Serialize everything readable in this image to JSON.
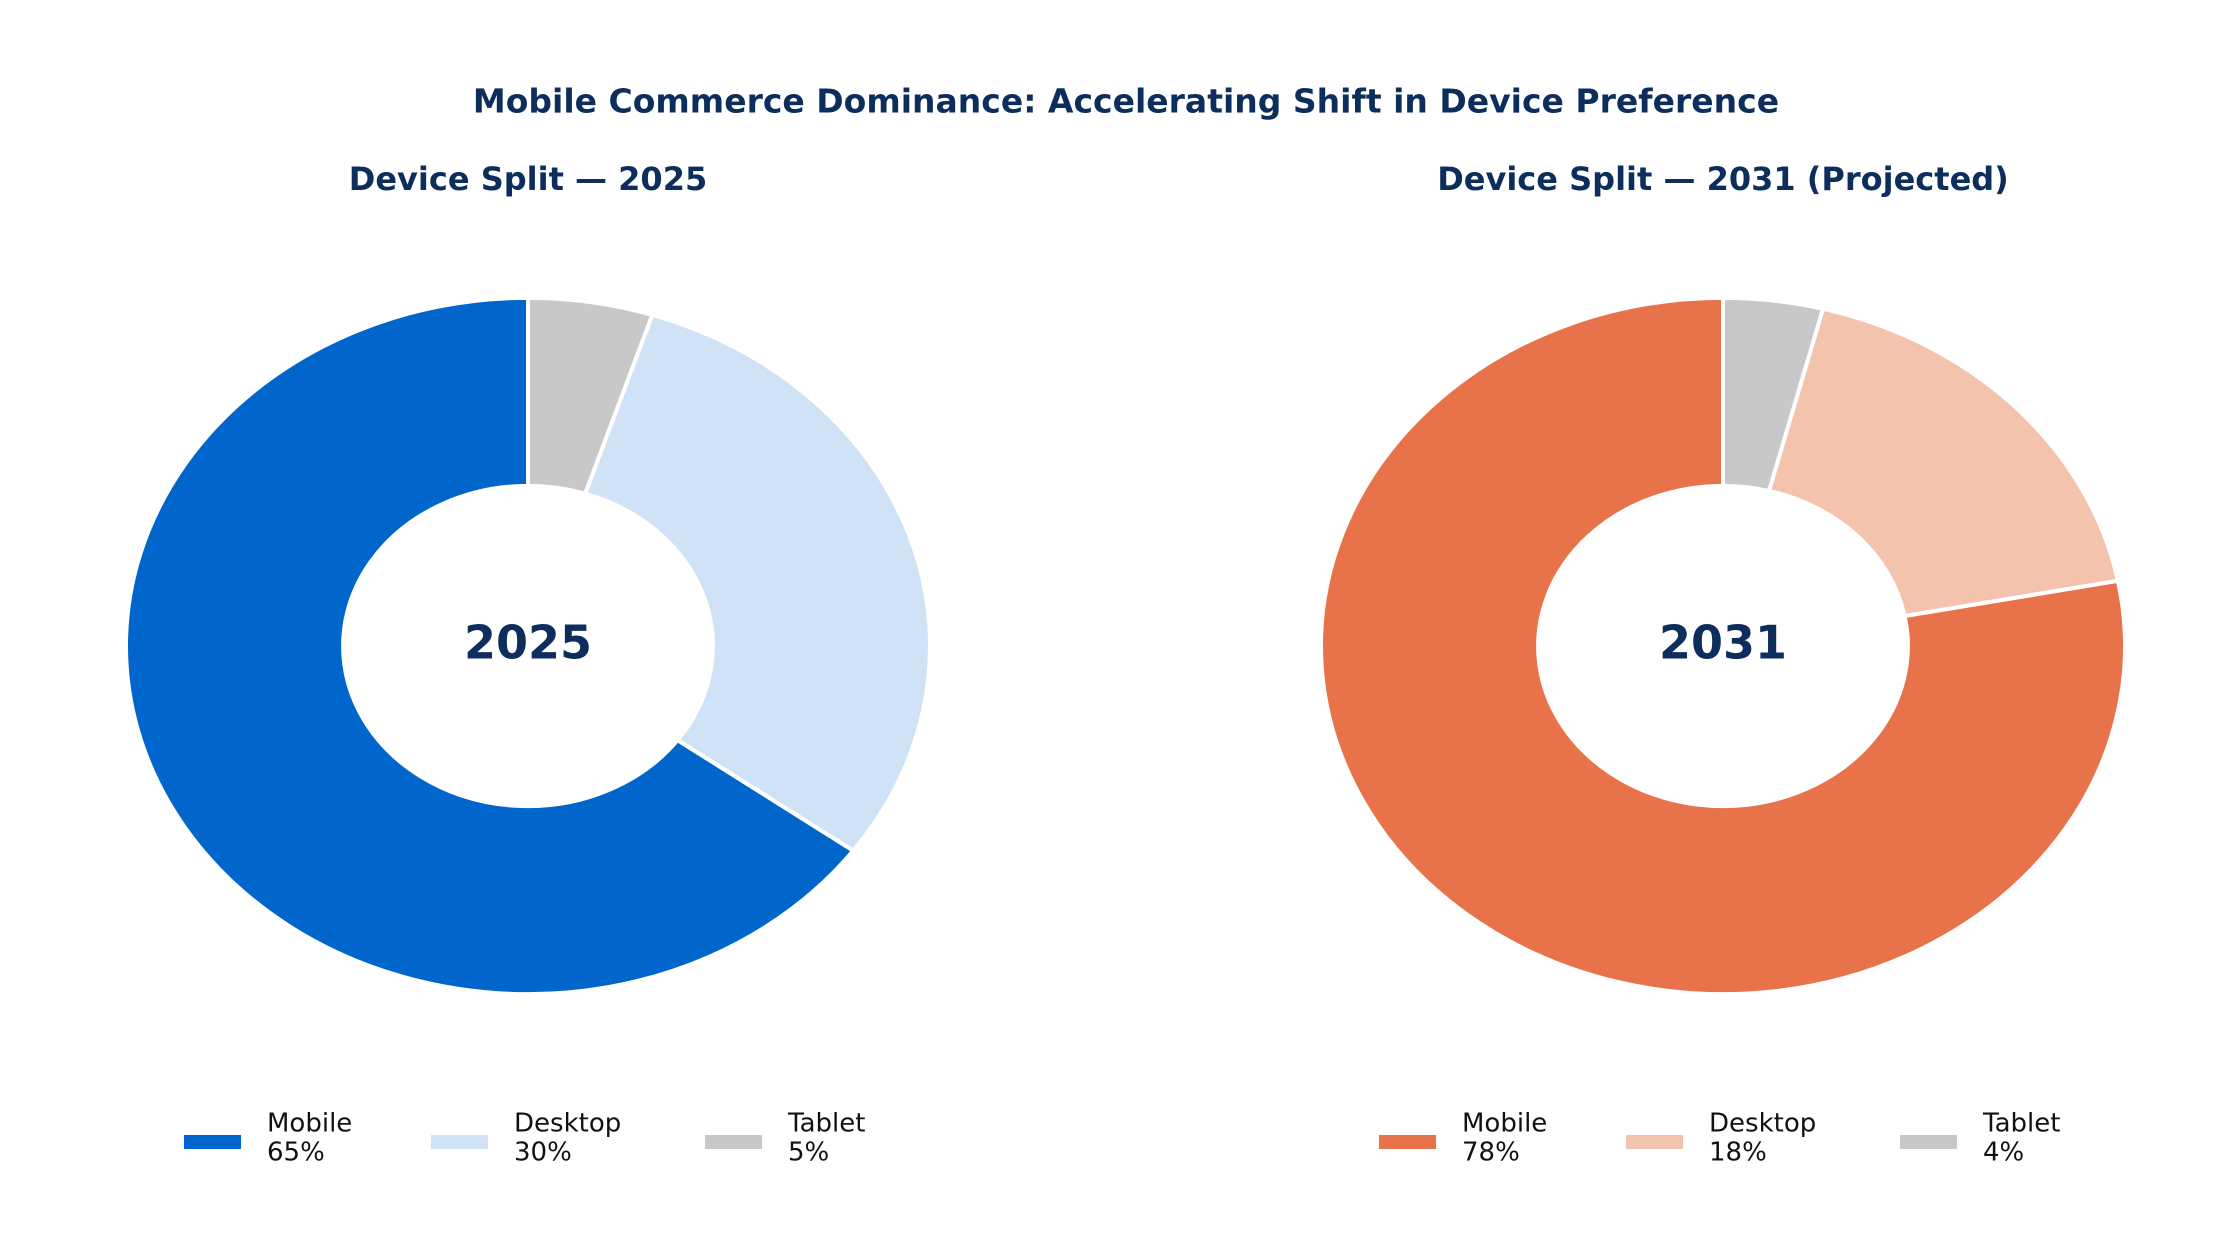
{
  "title": "Mobile Commerce Dominance: Accelerating Shift in Device Preference",
  "chart_data": [
    {
      "type": "pie",
      "title": "Device Split — 2025",
      "center_label": "2025",
      "categories": [
        "Mobile",
        "Desktop",
        "Tablet"
      ],
      "values": [
        65,
        30,
        5
      ],
      "value_labels": [
        "65%",
        "30%",
        "5%"
      ],
      "colors": [
        "#0066cc",
        "#cfe2f6",
        "#c8c8c8"
      ]
    },
    {
      "type": "pie",
      "title": "Device Split — 2031 (Projected)",
      "center_label": "2031",
      "categories": [
        "Mobile",
        "Desktop",
        "Tablet"
      ],
      "values": [
        78,
        18,
        4
      ],
      "value_labels": [
        "78%",
        "18%",
        "4%"
      ],
      "colors": [
        "#e8734a",
        "#f4c3ae",
        "#c8c8c8"
      ]
    }
  ]
}
